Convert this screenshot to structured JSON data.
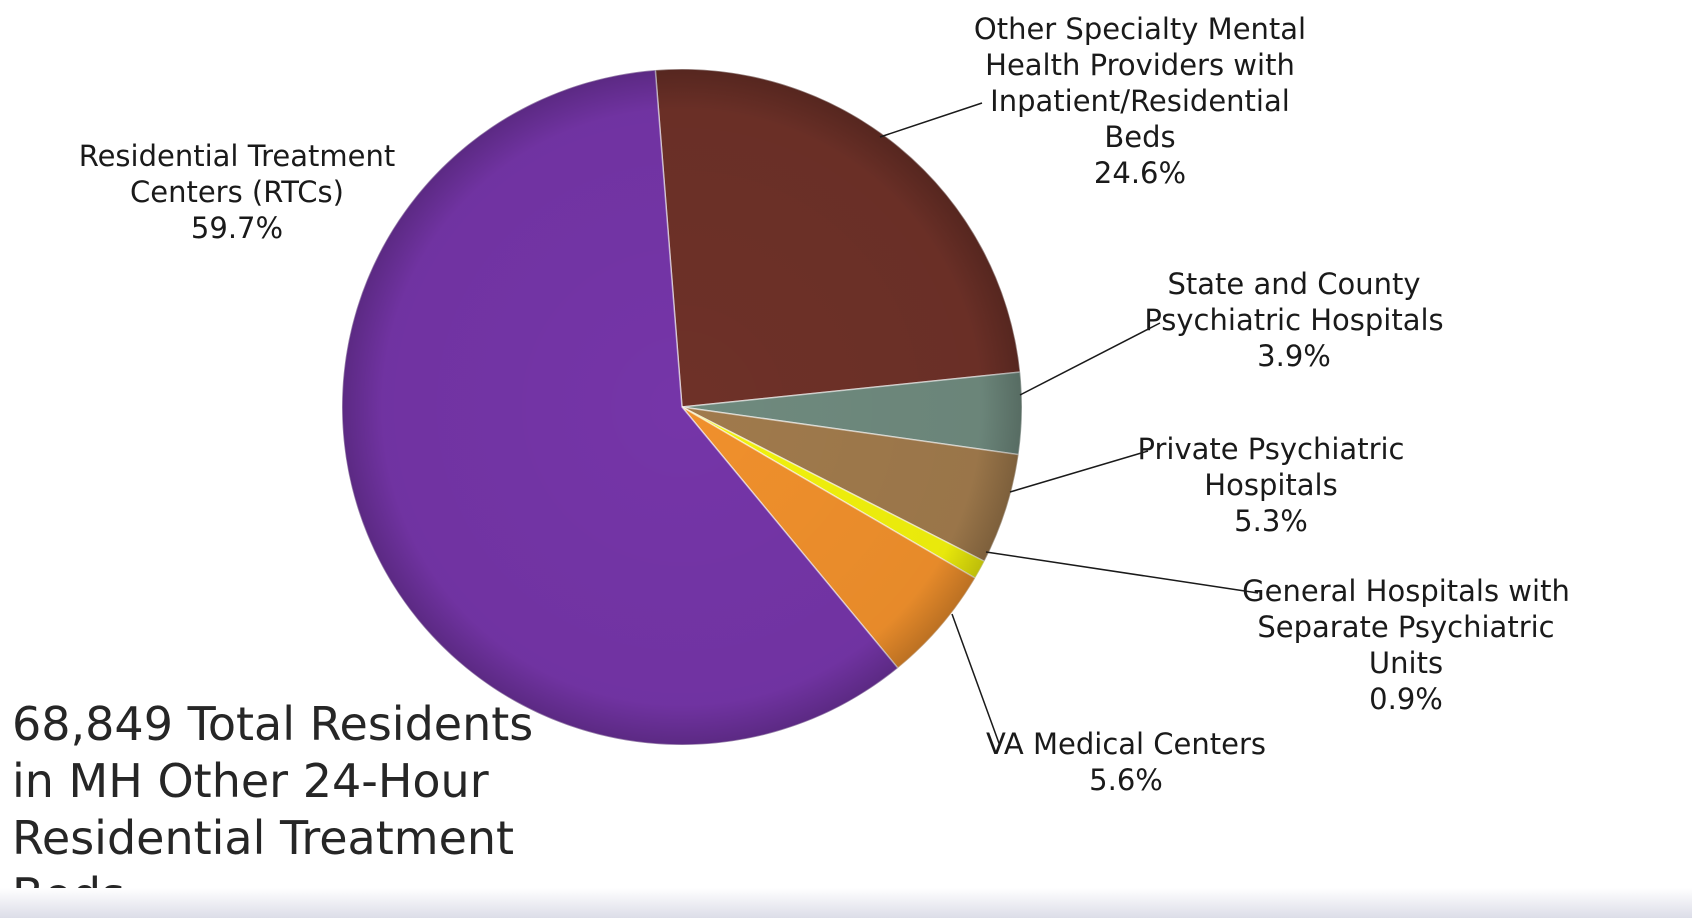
{
  "chart_data": {
    "type": "pie",
    "title": "",
    "slices": [
      {
        "label": "Other Specialty Mental Health Providers with Inpatient/Residential Beds",
        "lines": [
          "Other Specialty Mental",
          "Health Providers with",
          "Inpatient/Residential",
          "Beds"
        ],
        "value": 24.6,
        "value_label": "24.6%",
        "color": "#6e3128"
      },
      {
        "label": "State and County Psychiatric Hospitals",
        "lines": [
          "State and County",
          "Psychiatric Hospitals"
        ],
        "value": 3.9,
        "value_label": "3.9%",
        "color": "#6f8a7e"
      },
      {
        "label": "Private Psychiatric Hospitals",
        "lines": [
          "Private Psychiatric",
          "Hospitals"
        ],
        "value": 5.3,
        "value_label": "5.3%",
        "color": "#a07a4c"
      },
      {
        "label": "General Hospitals with Separate Psychiatric Units",
        "lines": [
          "General Hospitals with",
          "Separate Psychiatric",
          "Units"
        ],
        "value": 0.9,
        "value_label": "0.9%",
        "color": "#f2f20c"
      },
      {
        "label": "VA Medical Centers",
        "lines": [
          "VA Medical Centers"
        ],
        "value": 5.6,
        "value_label": "5.6%",
        "color": "#f0902c"
      },
      {
        "label": "Residential Treatment Centers (RTCs)",
        "lines": [
          "Residential Treatment",
          "Centers (RTCs)"
        ],
        "value": 59.7,
        "value_label": "59.7%",
        "color": "#7535a8"
      }
    ]
  },
  "summary": {
    "lines": [
      "68,849 Total Residents",
      "in MH Other 24-Hour",
      "Residential Treatment",
      "Beds"
    ]
  }
}
